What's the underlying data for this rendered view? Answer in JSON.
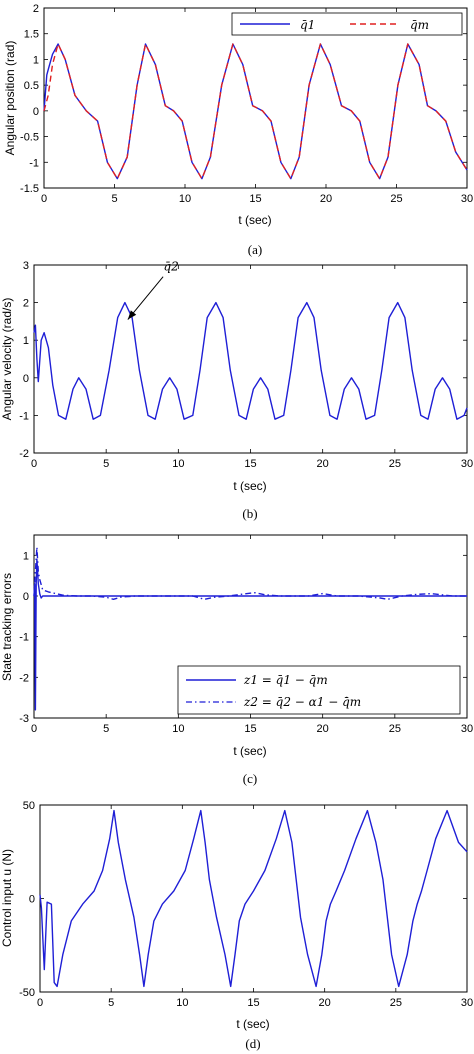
{
  "chart_data": [
    {
      "type": "line",
      "caption": "(a)",
      "xlabel": "t (sec)",
      "ylabel": "Angular position (rad)",
      "xlim": [
        0,
        30
      ],
      "ylim": [
        -1.5,
        2
      ],
      "xticks": [
        0,
        5,
        10,
        15,
        20,
        25,
        30
      ],
      "xtick_labels": [
        "0",
        "5",
        "10",
        "15",
        "20",
        "25",
        "30"
      ],
      "yticks": [
        -1.5,
        -1,
        -0.5,
        0,
        0.5,
        1,
        1.5,
        2
      ],
      "ytick_labels": [
        "-1.5",
        "-1",
        "-0.5",
        "0",
        "0.5",
        "1",
        "1.5",
        "2"
      ],
      "legend_position": "top-right",
      "series": [
        {
          "name": "q̄1",
          "style": "solid",
          "color": "#1f1fd6",
          "x": [
            0,
            0.2,
            0.3,
            0.6,
            1.0,
            1.5,
            2.2,
            3.0,
            3.8,
            4.5,
            5.2,
            5.9,
            6.6,
            7.2,
            7.9,
            8.6,
            9.2,
            9.8,
            10.5,
            11.2,
            11.8,
            12.6,
            13.4,
            14.1,
            14.8,
            15.5,
            16.1,
            16.8,
            17.5,
            18.1,
            18.8,
            19.6,
            20.3,
            21.1,
            21.8,
            22.4,
            23.1,
            23.8,
            24.4,
            25.1,
            25.8,
            26.6,
            27.2,
            27.8,
            28.5,
            29.2,
            30
          ],
          "y": [
            0,
            0.7,
            0.8,
            1.1,
            1.3,
            1.0,
            0.3,
            0.0,
            -0.2,
            -1.0,
            -1.32,
            -0.9,
            0.5,
            1.3,
            0.9,
            0.1,
            0.0,
            -0.2,
            -1.0,
            -1.32,
            -0.9,
            0.5,
            1.3,
            0.9,
            0.1,
            0.0,
            -0.2,
            -1.0,
            -1.32,
            -0.9,
            0.5,
            1.3,
            0.9,
            0.1,
            0.0,
            -0.2,
            -1.0,
            -1.32,
            -0.9,
            0.5,
            1.3,
            0.9,
            0.1,
            0.0,
            -0.2,
            -0.8,
            -1.15
          ]
        },
        {
          "name": "q̄m",
          "style": "dashed",
          "color": "#e02020",
          "x": [
            0,
            0.3,
            0.6,
            1.0,
            1.5,
            2.2,
            3.0,
            3.8,
            4.5,
            5.2,
            5.9,
            6.6,
            7.2,
            7.9,
            8.6,
            9.2,
            9.8,
            10.5,
            11.2,
            11.8,
            12.6,
            13.4,
            14.1,
            14.8,
            15.5,
            16.1,
            16.8,
            17.5,
            18.1,
            18.8,
            19.6,
            20.3,
            21.1,
            21.8,
            22.4,
            23.1,
            23.8,
            24.4,
            25.1,
            25.8,
            26.6,
            27.2,
            27.8,
            28.5,
            29.2,
            30
          ],
          "y": [
            0,
            0.3,
            0.9,
            1.3,
            1.0,
            0.3,
            0.0,
            -0.2,
            -1.0,
            -1.32,
            -0.9,
            0.5,
            1.3,
            0.9,
            0.1,
            0.0,
            -0.2,
            -1.0,
            -1.32,
            -0.9,
            0.5,
            1.3,
            0.9,
            0.1,
            0.0,
            -0.2,
            -1.0,
            -1.32,
            -0.9,
            0.5,
            1.3,
            0.9,
            0.1,
            0.0,
            -0.2,
            -1.0,
            -1.32,
            -0.9,
            0.5,
            1.3,
            0.9,
            0.1,
            0.0,
            -0.2,
            -0.8,
            -1.15
          ]
        }
      ]
    },
    {
      "type": "line",
      "caption": "(b)",
      "xlabel": "t (sec)",
      "ylabel": "Angular velocity (rad/s)",
      "xlim": [
        0,
        30
      ],
      "ylim": [
        -2,
        3
      ],
      "xticks": [
        0,
        5,
        10,
        15,
        20,
        25,
        30
      ],
      "xtick_labels": [
        "0",
        "5",
        "10",
        "15",
        "20",
        "25",
        "30"
      ],
      "yticks": [
        -2,
        -1,
        0,
        1,
        2,
        3
      ],
      "ytick_labels": [
        "-2",
        "-1",
        "0",
        "1",
        "2",
        "3"
      ],
      "annotation": {
        "text": "q̄2",
        "x": 9.5,
        "y": 2.85,
        "arrow_to": [
          6.5,
          1.55
        ]
      },
      "series": [
        {
          "name": "q̄2",
          "style": "solid",
          "color": "#1f1fd6",
          "x": [
            0,
            0.1,
            0.2,
            0.3,
            0.5,
            0.7,
            1.0,
            1.3,
            1.7,
            2.2,
            2.7,
            3.1,
            3.6,
            4.1,
            4.6,
            5.2,
            5.8,
            6.3,
            6.8,
            7.3,
            7.9,
            8.4,
            8.9,
            9.4,
            9.9,
            10.4,
            11.0,
            11.5,
            12.0,
            12.6,
            13.1,
            13.6,
            14.2,
            14.7,
            15.2,
            15.7,
            16.2,
            16.7,
            17.3,
            17.8,
            18.3,
            18.9,
            19.4,
            19.9,
            20.5,
            21.0,
            21.5,
            22.0,
            22.5,
            23.0,
            23.6,
            24.1,
            24.6,
            25.2,
            25.7,
            26.2,
            26.8,
            27.3,
            27.8,
            28.3,
            28.8,
            29.3,
            29.8,
            30
          ],
          "y": [
            1.2,
            1.4,
            0.5,
            -0.1,
            1.0,
            1.2,
            0.8,
            -0.2,
            -1.0,
            -1.1,
            -0.3,
            0.0,
            -0.3,
            -1.1,
            -1.0,
            0.2,
            1.6,
            2.0,
            1.6,
            0.2,
            -1.0,
            -1.1,
            -0.3,
            0.0,
            -0.3,
            -1.1,
            -1.0,
            0.2,
            1.6,
            2.0,
            1.6,
            0.2,
            -1.0,
            -1.1,
            -0.3,
            0.0,
            -0.3,
            -1.1,
            -1.0,
            0.2,
            1.6,
            2.0,
            1.6,
            0.2,
            -1.0,
            -1.1,
            -0.3,
            0.0,
            -0.3,
            -1.1,
            -1.0,
            0.2,
            1.6,
            2.0,
            1.6,
            0.2,
            -1.0,
            -1.1,
            -0.3,
            0.0,
            -0.3,
            -1.1,
            -1.0,
            -0.8
          ]
        }
      ]
    },
    {
      "type": "line",
      "caption": "(c)",
      "xlabel": "t (sec)",
      "ylabel": "State tracking errors",
      "xlim": [
        0,
        30
      ],
      "ylim": [
        -3,
        1.5
      ],
      "xticks": [
        0,
        5,
        10,
        15,
        20,
        25,
        30
      ],
      "xtick_labels": [
        "0",
        "5",
        "10",
        "15",
        "20",
        "25",
        "30"
      ],
      "yticks": [
        -3,
        -2,
        -1,
        0,
        1
      ],
      "ytick_labels": [
        "-3",
        "-2",
        "-1",
        "0",
        "1"
      ],
      "legend_position": "bottom-right",
      "series": [
        {
          "name": "z1 = q̄1 − q̄m",
          "style": "solid",
          "color": "#1f1fd6",
          "x": [
            0,
            0.05,
            0.1,
            0.15,
            0.2,
            0.25,
            0.3,
            0.4,
            0.5,
            0.6,
            1.0,
            2.0,
            5.0,
            10.0,
            15.0,
            20.0,
            25.0,
            30.0
          ],
          "y": [
            0,
            0.3,
            -2.8,
            0.3,
            0.9,
            0.6,
            0.3,
            0.05,
            -0.05,
            0.0,
            0.0,
            0.0,
            0.0,
            0.0,
            0.0,
            0.0,
            0.0,
            0.0
          ]
        },
        {
          "name": "z2 = q̄2 − α1 − q̄̇m",
          "style": "dashdot",
          "color": "#1f1fd6",
          "x": [
            0,
            0.1,
            0.2,
            0.25,
            0.3,
            0.4,
            0.6,
            1.0,
            1.5,
            2.0,
            3.0,
            4.0,
            5.0,
            5.5,
            6.0,
            7.0,
            8.0,
            9.0,
            10.0,
            11.0,
            11.8,
            12.5,
            13.5,
            14.5,
            15.3,
            16.0,
            17.0,
            18.0,
            19.0,
            20.0,
            21.0,
            22.5,
            24.0,
            24.5,
            25.5,
            26.5,
            27.5,
            29.0,
            30.0
          ],
          "y": [
            0,
            0.6,
            1.2,
            0.9,
            0.6,
            0.4,
            0.15,
            0.1,
            0.06,
            0.02,
            0.0,
            0.0,
            -0.03,
            -0.08,
            -0.03,
            0.0,
            0.0,
            0.0,
            0.0,
            0.0,
            -0.08,
            -0.03,
            0.0,
            0.05,
            0.08,
            0.03,
            0.0,
            0.0,
            0.0,
            0.06,
            0.0,
            0.0,
            -0.05,
            -0.08,
            0.0,
            0.04,
            0.06,
            0.0,
            0.0
          ]
        }
      ]
    },
    {
      "type": "line",
      "caption": "(d)",
      "xlabel": "t (sec)",
      "ylabel": "Control input u  (N)",
      "xlim": [
        0,
        30
      ],
      "ylim": [
        -50,
        50
      ],
      "xticks": [
        0,
        5,
        10,
        15,
        20,
        25,
        30
      ],
      "xtick_labels": [
        "0",
        "5",
        "10",
        "15",
        "20",
        "25",
        "30"
      ],
      "yticks": [
        -50,
        0,
        50
      ],
      "ytick_labels": [
        "-50",
        "0",
        "50"
      ],
      "series": [
        {
          "name": "u",
          "style": "solid",
          "color": "#1f1fd6",
          "x": [
            0,
            0.1,
            0.3,
            0.5,
            0.8,
            1.0,
            1.2,
            1.6,
            2.2,
            3.0,
            3.8,
            4.4,
            4.9,
            5.2,
            5.5,
            6.0,
            6.6,
            7.0,
            7.3,
            7.6,
            8.0,
            8.6,
            9.4,
            10.2,
            10.8,
            11.3,
            11.6,
            11.9,
            12.4,
            13.0,
            13.4,
            13.7,
            14.0,
            14.4,
            15.0,
            15.8,
            16.6,
            17.2,
            17.7,
            18.0,
            18.3,
            18.8,
            19.4,
            19.8,
            20.1,
            20.4,
            20.8,
            21.4,
            22.2,
            23.0,
            23.6,
            24.1,
            24.4,
            24.7,
            25.2,
            25.8,
            26.2,
            26.5,
            26.8,
            27.2,
            27.8,
            28.6,
            29.4,
            30.0
          ],
          "y": [
            2,
            -5,
            -38,
            -2,
            -3,
            -45,
            -47,
            -30,
            -12,
            -3,
            4,
            15,
            32,
            47,
            30,
            10,
            -10,
            -30,
            -47,
            -30,
            -12,
            -3,
            4,
            15,
            32,
            47,
            30,
            10,
            -10,
            -30,
            -47,
            -30,
            -12,
            -3,
            4,
            15,
            32,
            47,
            30,
            10,
            -10,
            -30,
            -47,
            -30,
            -12,
            -3,
            4,
            15,
            32,
            47,
            30,
            10,
            -10,
            -30,
            -47,
            -30,
            -12,
            -3,
            4,
            15,
            32,
            47,
            30,
            25
          ]
        }
      ]
    }
  ]
}
